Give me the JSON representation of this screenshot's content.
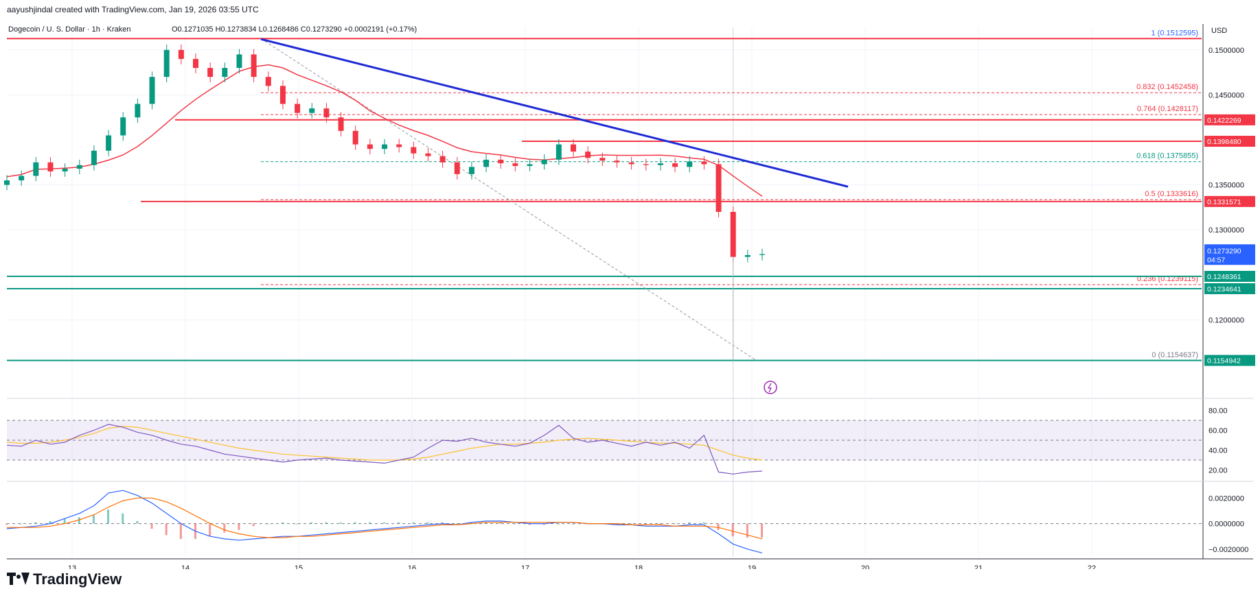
{
  "topline": "aayushjindal created with TradingView.com, Jan 19, 2026 03:55 UTC",
  "legend": {
    "symbol": "Dogecoin / U. S. Dollar · 1h · Kraken",
    "ohlc": "O0.1271035 H0.1273834 L0.1268486 C0.1273290 +0.0002191 (+0.17%)"
  },
  "currency": "USD",
  "brand": "TradingView",
  "chart_data": [
    {
      "type": "line",
      "description_key": "price",
      "x_ticks": [
        "13",
        "14",
        "15",
        "16",
        "17",
        "18",
        "19",
        "20",
        "21",
        "22"
      ],
      "y_ticks": [
        "0.1500000",
        "0.1450000",
        "0.1350000",
        "0.1300000",
        "0.1200000"
      ],
      "ylim": [
        0.1115,
        0.1525
      ],
      "series_close": [
        0.1355,
        0.136,
        0.1375,
        0.1365,
        0.1368,
        0.1372,
        0.1388,
        0.1405,
        0.1425,
        0.144,
        0.147,
        0.15,
        0.149,
        0.148,
        0.147,
        0.148,
        0.1495,
        0.147,
        0.146,
        0.144,
        0.143,
        0.1435,
        0.1425,
        0.141,
        0.1395,
        0.139,
        0.1395,
        0.1392,
        0.1385,
        0.1382,
        0.1375,
        0.1362,
        0.137,
        0.1378,
        0.1374,
        0.1371,
        0.1373,
        0.1378,
        0.1395,
        0.1387,
        0.138,
        0.1377,
        0.1375,
        0.1373,
        0.1372,
        0.1374,
        0.137,
        0.1376,
        0.1373,
        0.132,
        0.127,
        0.1272,
        0.1273
      ],
      "current_price": "0.1273290",
      "countdown": "04:57",
      "price_labels": [
        {
          "value": 0.1422269,
          "text": "0.1422269",
          "color": "#f23645"
        },
        {
          "value": 0.139848,
          "text": "0.1398480",
          "color": "#f23645"
        },
        {
          "value": 0.1331571,
          "text": "0.1331571",
          "color": "#f23645"
        },
        {
          "value": 0.1248361,
          "text": "0.1248361",
          "color": "#089981"
        },
        {
          "value": 0.1234641,
          "text": "0.1234641",
          "color": "#089981"
        },
        {
          "value": 0.1154942,
          "text": "0.1154942",
          "color": "#089981"
        }
      ],
      "fib_levels": [
        {
          "text": "1 (0.1512595)",
          "value": 0.1512595,
          "color": "#2962ff"
        },
        {
          "text": "0.832 (0.1452458)",
          "value": 0.1452458,
          "color": "#f23645"
        },
        {
          "text": "0.764 (0.1428117)",
          "value": 0.1428117,
          "color": "#f23645"
        },
        {
          "text": "0.618 (0.1375855)",
          "value": 0.1375855,
          "color": "#089981"
        },
        {
          "text": "0.5 (0.1333616)",
          "value": 0.1333616,
          "color": "#f23645"
        },
        {
          "text": "0.236 (0.1239115)",
          "value": 0.1239115,
          "color": "#f23645"
        },
        {
          "text": "0 (0.1154637)",
          "value": 0.1154637,
          "color": "#787b86"
        }
      ]
    },
    {
      "type": "line",
      "description_key": "rsi",
      "y_ticks": [
        "80.00",
        "60.00",
        "40.00",
        "20.00"
      ],
      "ylim": [
        10,
        90
      ],
      "band": [
        30,
        70
      ],
      "values": [
        45,
        44,
        50,
        46,
        48,
        55,
        60,
        66,
        63,
        58,
        55,
        50,
        46,
        44,
        40,
        36,
        34,
        32,
        30,
        28,
        30,
        31,
        32,
        30,
        29,
        28,
        27,
        30,
        33,
        42,
        50,
        49,
        52,
        48,
        46,
        44,
        47,
        55,
        65,
        52,
        48,
        50,
        47,
        44,
        48,
        45,
        48,
        42,
        55,
        18,
        16,
        18,
        19
      ],
      "ma": [
        48,
        47,
        47,
        48,
        50,
        53,
        57,
        62,
        64,
        63,
        60,
        57,
        54,
        51,
        48,
        45,
        42,
        40,
        38,
        36,
        35,
        34,
        33,
        32,
        31,
        30,
        30,
        30,
        31,
        33,
        36,
        39,
        42,
        44,
        46,
        46,
        47,
        48,
        50,
        51,
        52,
        51,
        50,
        49,
        48,
        47,
        47,
        46,
        45,
        40,
        35,
        32,
        30
      ]
    },
    {
      "type": "line",
      "description_key": "macd",
      "y_ticks": [
        "0.0020000",
        "0.0000000",
        "−0.0020000"
      ],
      "ylim": [
        -0.0026,
        0.0032
      ],
      "macd": [
        -0.0004,
        -0.0003,
        -0.0002,
        0.0,
        0.0004,
        0.0008,
        0.0014,
        0.0024,
        0.0026,
        0.0022,
        0.0016,
        0.0008,
        0.0,
        -0.0006,
        -0.001,
        -0.0012,
        -0.0013,
        -0.0012,
        -0.0011,
        -0.001,
        -0.001,
        -0.0009,
        -0.0008,
        -0.0007,
        -0.0006,
        -0.0005,
        -0.0004,
        -0.0003,
        -0.0002,
        -0.0001,
        0.0,
        -0.0001,
        0.0001,
        0.0002,
        0.0002,
        0.0001,
        0.0,
        0.0,
        0.0001,
        0.0001,
        0.0,
        0.0,
        -0.0001,
        -0.0001,
        -0.0002,
        -0.0002,
        -0.0002,
        -0.0001,
        -0.0001,
        -0.0008,
        -0.0016,
        -0.002,
        -0.0023
      ],
      "signal": [
        -0.0003,
        -0.0003,
        -0.0003,
        -0.0002,
        0.0,
        0.0003,
        0.0007,
        0.0013,
        0.0018,
        0.002,
        0.002,
        0.0017,
        0.0012,
        0.0006,
        0.0,
        -0.0005,
        -0.0008,
        -0.001,
        -0.0011,
        -0.0011,
        -0.001,
        -0.001,
        -0.0009,
        -0.0008,
        -0.0007,
        -0.0006,
        -0.0005,
        -0.0004,
        -0.0003,
        -0.0002,
        -0.0001,
        -0.0001,
        0.0,
        0.0001,
        0.0001,
        0.0001,
        0.0001,
        0.0001,
        0.0001,
        0.0001,
        0.0,
        0.0,
        0.0,
        -0.0001,
        -0.0001,
        -0.0001,
        -0.0002,
        -0.0002,
        -0.0002,
        -0.0003,
        -0.0006,
        -0.0009,
        -0.0012
      ]
    }
  ],
  "colors": {
    "up": "#089981",
    "down": "#f23645",
    "trendline": "#1e2bd6",
    "ma": "#f23645",
    "rsi": "#7e57c2",
    "rsi_ma": "#fbc02d",
    "macd": "#2962ff",
    "signal": "#ff6d00",
    "grid": "#f0f3fa"
  }
}
